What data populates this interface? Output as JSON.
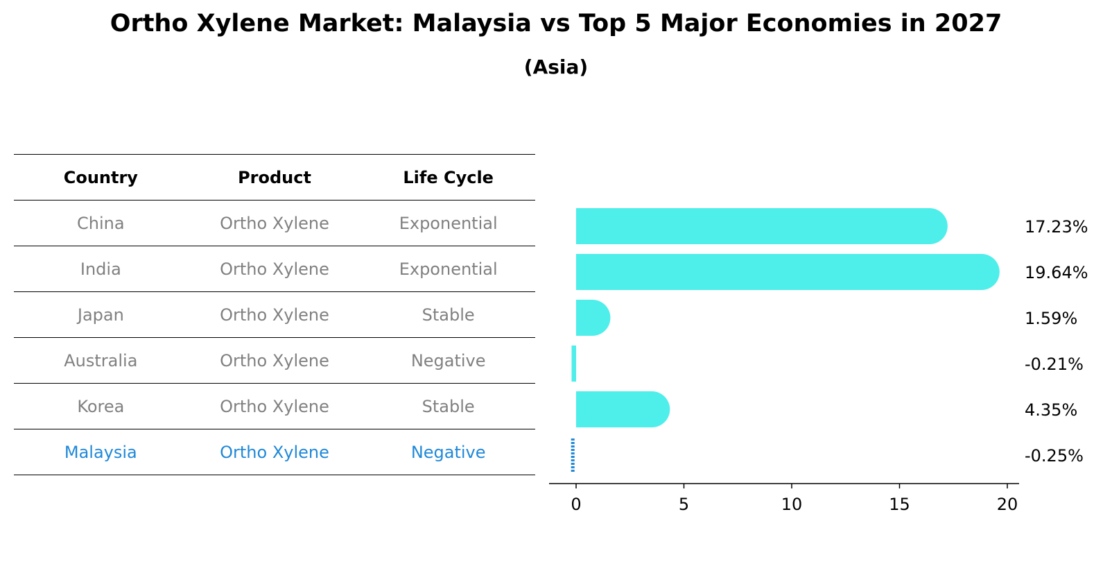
{
  "title": "Ortho Xylene Market: Malaysia vs Top 5 Major Economies in 2027",
  "subtitle": "(Asia)",
  "table": {
    "headers": [
      "Country",
      "Product",
      "Life Cycle"
    ],
    "rows": [
      [
        "China",
        "Ortho Xylene",
        "Exponential"
      ],
      [
        "India",
        "Ortho Xylene",
        "Exponential"
      ],
      [
        "Japan",
        "Ortho Xylene",
        "Stable"
      ],
      [
        "Australia",
        "Ortho Xylene",
        "Negative"
      ],
      [
        "Korea",
        "Ortho Xylene",
        "Stable"
      ],
      [
        "Malaysia",
        "Ortho Xylene",
        "Negative"
      ]
    ],
    "highlight_row": "Malaysia"
  },
  "colors": {
    "bar": "#4eeeea",
    "highlight": "#1f88d8",
    "muted_text": "#808080"
  },
  "chart_data": {
    "type": "bar",
    "orientation": "horizontal",
    "categories": [
      "China",
      "India",
      "Japan",
      "Australia",
      "Korea",
      "Malaysia"
    ],
    "values": [
      17.23,
      19.64,
      1.59,
      -0.21,
      4.35,
      -0.25
    ],
    "labels": [
      "17.23%",
      "19.64%",
      "1.59%",
      "-0.21%",
      "4.35%",
      "-0.25%"
    ],
    "highlight": "Malaysia",
    "xlim": [
      -1.3,
      20.6
    ],
    "xticks": [
      0,
      5,
      10,
      15,
      20
    ],
    "xlabel": "",
    "ylabel": "",
    "grid": false,
    "legend": "none"
  }
}
